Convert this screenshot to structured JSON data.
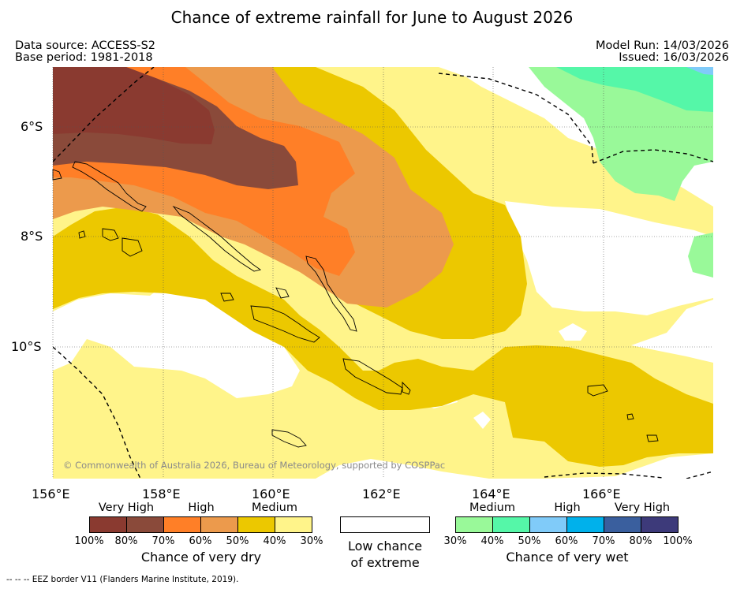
{
  "title": "Chance of extreme rainfall for June to August 2026",
  "meta": {
    "data_source": "Data source: ACCESS-S2",
    "base_period": "Base period: 1981-2018",
    "model_run": "Model Run: 14/03/2026",
    "issued": "Issued: 16/03/2026"
  },
  "map": {
    "lat_labels": [
      "6°S",
      "8°S",
      "10°S"
    ],
    "lon_labels": [
      "156°E",
      "158°E",
      "160°E",
      "162°E",
      "164°E",
      "166°E"
    ],
    "copyright": "© Commonwealth of Australia 2026, Bureau of Meteorology, supported by COSPPac"
  },
  "legend": {
    "dry": {
      "categories": [
        "Very High",
        "High",
        "Medium"
      ],
      "colors": [
        "#8a3a30",
        "#8a4a3a",
        "#ff7f27",
        "#ec9a4c",
        "#ecc800",
        "#fff48a"
      ],
      "ticks": [
        "100%",
        "80%",
        "70%",
        "60%",
        "50%",
        "40%",
        "30%"
      ],
      "title": "Chance of very dry"
    },
    "low": {
      "line1": "Low chance",
      "line2": "of extreme"
    },
    "wet": {
      "categories": [
        "Medium",
        "High",
        "Very High"
      ],
      "colors": [
        "#99f999",
        "#55f7a8",
        "#80cbf9",
        "#00b1eb",
        "#3a5f9e",
        "#3d3a7a"
      ],
      "ticks": [
        "30%",
        "40%",
        "50%",
        "60%",
        "70%",
        "80%",
        "100%"
      ],
      "title": "Chance of very wet"
    }
  },
  "footer": "--  --  -- EEZ border V11 (Flanders Marine Institute, 2019)."
}
